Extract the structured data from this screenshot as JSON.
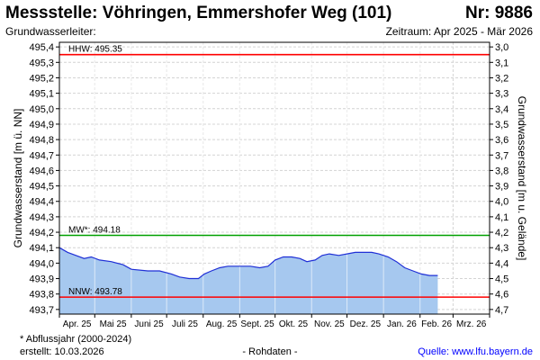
{
  "header": {
    "title": "Messstelle: Vöhringen, Emmershofer Weg (101)",
    "number": "Nr: 9886",
    "subtitle": "Grundwasserleiter:",
    "period": "Zeitraum: Apr 2025 - Mär 2026"
  },
  "footer": {
    "note": "* Abflussjahr (2000-2024)",
    "created": "erstellt:  10.03.2026",
    "raw": "- Rohdaten -",
    "source": "Quelle: www.lfu.bayern.de"
  },
  "colors": {
    "area_fill": "#a6c8ef",
    "line": "#1f2fd6",
    "hhw": "#ff0000",
    "nnw": "#ff0000",
    "mw": "#00a000",
    "grid": "#d4d4d4"
  },
  "chart_data": {
    "type": "area",
    "ylabel": "Grundwasserstand [m ü. NN]",
    "y2label": "Grundwasserstand [m u. Gelände]",
    "ylim": [
      493.67,
      495.43
    ],
    "y_ticks": [
      "495,4",
      "495,3",
      "495,2",
      "495,1",
      "495,0",
      "494,9",
      "494,8",
      "494,7",
      "494,6",
      "494,5",
      "494,4",
      "494,3",
      "494,2",
      "494,1",
      "494,0",
      "493,9",
      "493,8",
      "493,7"
    ],
    "y2_ticks": [
      "3,0",
      "3,1",
      "3,2",
      "3,3",
      "3,4",
      "3,5",
      "3,6",
      "3,7",
      "3,8",
      "3,9",
      "4,0",
      "4,1",
      "4,2",
      "4,3",
      "4,4",
      "4,5",
      "4,6",
      "4,7",
      "4,8"
    ],
    "x_ticks": [
      "Apr. 25",
      "Mai 25",
      "Juni 25",
      "Juli 25",
      "Aug. 25",
      "Sept. 25",
      "Okt. 25",
      "Nov. 25",
      "Dez. 25",
      "Jan. 26",
      "Feb. 26",
      "Mrz. 26"
    ],
    "x_start": "2025-04-01",
    "x_end": "2026-04-01",
    "grid": true,
    "reference_lines": [
      {
        "label": "HHW: 495.35",
        "value": 495.35,
        "color": "#ff0000"
      },
      {
        "label": "MW*: 494.18",
        "value": 494.18,
        "color": "#00a000"
      },
      {
        "label": "NNW: 493.78",
        "value": 493.78,
        "color": "#ff0000"
      }
    ],
    "series": [
      {
        "points": [
          [
            "2025-04-01",
            494.1
          ],
          [
            "2025-04-08",
            494.07
          ],
          [
            "2025-04-15",
            494.05
          ],
          [
            "2025-04-22",
            494.03
          ],
          [
            "2025-04-28",
            494.04
          ],
          [
            "2025-05-05",
            494.02
          ],
          [
            "2025-05-15",
            494.01
          ],
          [
            "2025-05-25",
            493.99
          ],
          [
            "2025-06-01",
            493.96
          ],
          [
            "2025-06-15",
            493.95
          ],
          [
            "2025-06-25",
            493.95
          ],
          [
            "2025-07-05",
            493.93
          ],
          [
            "2025-07-12",
            493.91
          ],
          [
            "2025-07-20",
            493.9
          ],
          [
            "2025-07-28",
            493.9
          ],
          [
            "2025-08-02",
            493.93
          ],
          [
            "2025-08-08",
            493.95
          ],
          [
            "2025-08-15",
            493.97
          ],
          [
            "2025-08-22",
            493.98
          ],
          [
            "2025-09-01",
            493.98
          ],
          [
            "2025-09-10",
            493.98
          ],
          [
            "2025-09-18",
            493.97
          ],
          [
            "2025-09-25",
            493.98
          ],
          [
            "2025-10-01",
            494.02
          ],
          [
            "2025-10-08",
            494.04
          ],
          [
            "2025-10-15",
            494.04
          ],
          [
            "2025-10-22",
            494.03
          ],
          [
            "2025-10-28",
            494.01
          ],
          [
            "2025-11-04",
            494.02
          ],
          [
            "2025-11-10",
            494.05
          ],
          [
            "2025-11-16",
            494.06
          ],
          [
            "2025-11-24",
            494.05
          ],
          [
            "2025-12-01",
            494.06
          ],
          [
            "2025-12-08",
            494.07
          ],
          [
            "2025-12-15",
            494.07
          ],
          [
            "2025-12-22",
            494.07
          ],
          [
            "2025-12-28",
            494.06
          ],
          [
            "2026-01-05",
            494.04
          ],
          [
            "2026-01-12",
            494.01
          ],
          [
            "2026-01-19",
            493.97
          ],
          [
            "2026-01-26",
            493.95
          ],
          [
            "2026-02-02",
            493.93
          ],
          [
            "2026-02-09",
            493.92
          ],
          [
            "2026-02-16",
            493.92
          ]
        ]
      }
    ]
  }
}
